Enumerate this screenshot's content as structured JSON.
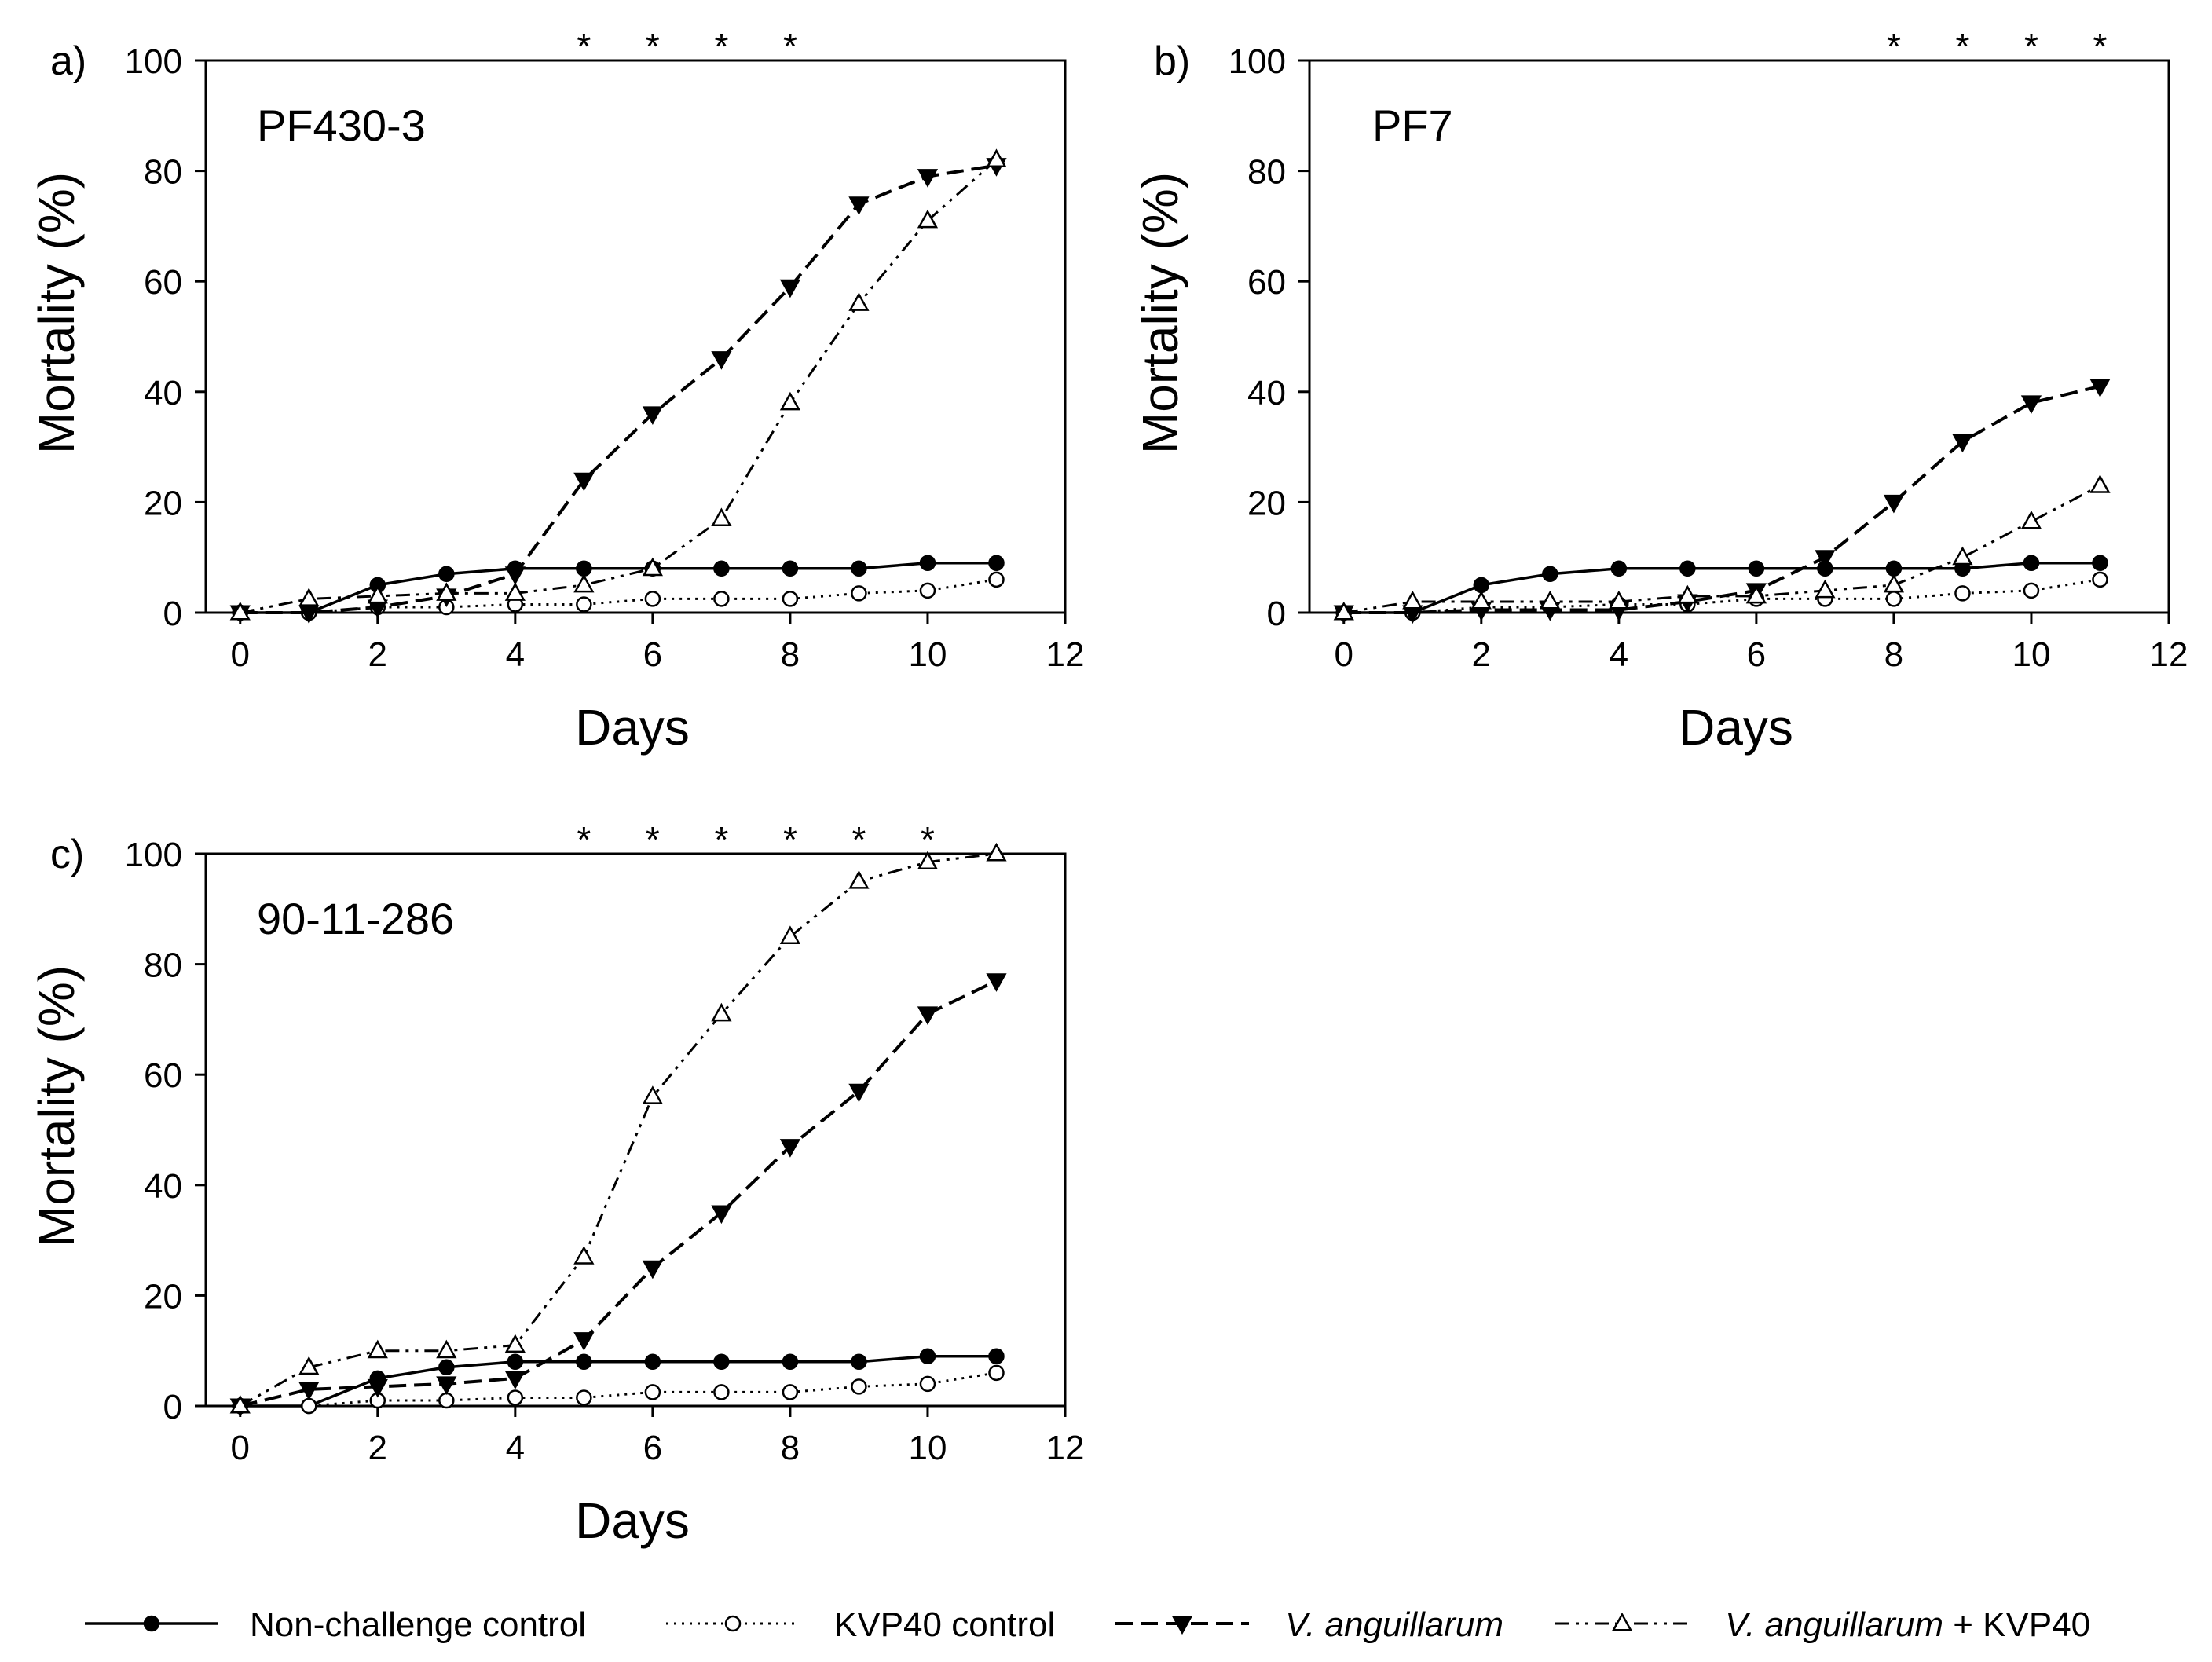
{
  "chart_data": {
    "type": "line",
    "legend_position": "bottom",
    "legend": [
      {
        "key": "ncc",
        "label": "Non-challenge control",
        "italic": false
      },
      {
        "key": "kvp",
        "label": "KVP40 control",
        "italic": false
      },
      {
        "key": "va",
        "label": "V. anguillarum",
        "italic": true
      },
      {
        "key": "vak",
        "label_italic": "V. anguillarum",
        "label_suffix": " + KVP40",
        "italic": true
      }
    ],
    "panels": [
      {
        "id": "a",
        "panel_label": "a)",
        "strain": "PF430-3",
        "xlabel": "Days",
        "ylabel": "Mortality (%)",
        "xlim": [
          -0.5,
          12
        ],
        "ylim": [
          0,
          100
        ],
        "xticks": [
          0,
          2,
          4,
          6,
          8,
          10,
          12
        ],
        "yticks": [
          0,
          20,
          40,
          60,
          80,
          100
        ],
        "significant_days": [
          5,
          6,
          7,
          8
        ],
        "star_symbol": "*",
        "x": [
          0,
          1,
          2,
          3,
          4,
          5,
          6,
          7,
          8,
          9,
          10,
          11
        ],
        "series": [
          {
            "key": "ncc",
            "name": "Non-challenge control",
            "values": [
              0,
              0,
              5,
              7,
              8,
              8,
              8,
              8,
              8,
              8,
              9,
              9
            ]
          },
          {
            "key": "kvp",
            "name": "KVP40 control",
            "values": [
              0,
              0,
              1,
              1,
              1.5,
              1.5,
              2.5,
              2.5,
              2.5,
              3.5,
              4,
              6
            ]
          },
          {
            "key": "va",
            "name": "V. anguillarum",
            "values": [
              0,
              0,
              1,
              3,
              7,
              24,
              36,
              46,
              59,
              74,
              79,
              81
            ]
          },
          {
            "key": "vak",
            "name": "V. anguillarum + KVP40",
            "values": [
              0,
              2.5,
              3,
              3.5,
              3.5,
              5,
              8,
              17,
              38,
              56,
              71,
              82
            ]
          }
        ]
      },
      {
        "id": "b",
        "panel_label": "b)",
        "strain": "PF7",
        "xlabel": "Days",
        "ylabel": "Mortality (%)",
        "xlim": [
          -0.5,
          12
        ],
        "ylim": [
          0,
          100
        ],
        "xticks": [
          0,
          2,
          4,
          6,
          8,
          10,
          12
        ],
        "yticks": [
          0,
          20,
          40,
          60,
          80,
          100
        ],
        "significant_days": [
          8,
          9,
          10,
          11
        ],
        "star_symbol": "*",
        "x": [
          0,
          1,
          2,
          3,
          4,
          5,
          6,
          7,
          8,
          9,
          10,
          11
        ],
        "series": [
          {
            "key": "ncc",
            "name": "Non-challenge control",
            "values": [
              0,
              0,
              5,
              7,
              8,
              8,
              8,
              8,
              8,
              8,
              9,
              9
            ]
          },
          {
            "key": "kvp",
            "name": "KVP40 control",
            "values": [
              0,
              0,
              1,
              1,
              1.5,
              1.5,
              2.5,
              2.5,
              2.5,
              3.5,
              4,
              6
            ]
          },
          {
            "key": "va",
            "name": "V. anguillarum",
            "values": [
              0,
              0,
              0.5,
              0.5,
              0.5,
              2,
              4,
              10,
              20,
              31,
              38,
              41
            ]
          },
          {
            "key": "vak",
            "name": "V. anguillarum + KVP40",
            "values": [
              0,
              2,
              2,
              2,
              2,
              3,
              3,
              4,
              5,
              10,
              16.5,
              23
            ]
          }
        ]
      },
      {
        "id": "c",
        "panel_label": "c)",
        "strain": "90-11-286",
        "xlabel": "Days",
        "ylabel": "Mortality (%)",
        "xlim": [
          -0.5,
          12
        ],
        "ylim": [
          0,
          100
        ],
        "xticks": [
          0,
          2,
          4,
          6,
          8,
          10,
          12
        ],
        "yticks": [
          0,
          20,
          40,
          60,
          80,
          100
        ],
        "significant_days": [
          5,
          6,
          7,
          8,
          9,
          10
        ],
        "star_symbol": "*",
        "x": [
          0,
          1,
          2,
          3,
          4,
          5,
          6,
          7,
          8,
          9,
          10,
          11
        ],
        "series": [
          {
            "key": "ncc",
            "name": "Non-challenge control",
            "values": [
              0,
              0,
              5,
              7,
              8,
              8,
              8,
              8,
              8,
              8,
              9,
              9
            ]
          },
          {
            "key": "kvp",
            "name": "KVP40 control",
            "values": [
              0,
              0,
              1,
              1,
              1.5,
              1.5,
              2.5,
              2.5,
              2.5,
              3.5,
              4,
              6
            ]
          },
          {
            "key": "va",
            "name": "V. anguillarum",
            "values": [
              0,
              3,
              3.5,
              4,
              5,
              12,
              25,
              35,
              47,
              57,
              71,
              77
            ]
          },
          {
            "key": "vak",
            "name": "V. anguillarum + KVP40",
            "values": [
              0,
              7,
              10,
              10,
              11,
              27,
              56,
              71,
              85,
              95,
              98.5,
              100
            ]
          }
        ]
      }
    ]
  }
}
